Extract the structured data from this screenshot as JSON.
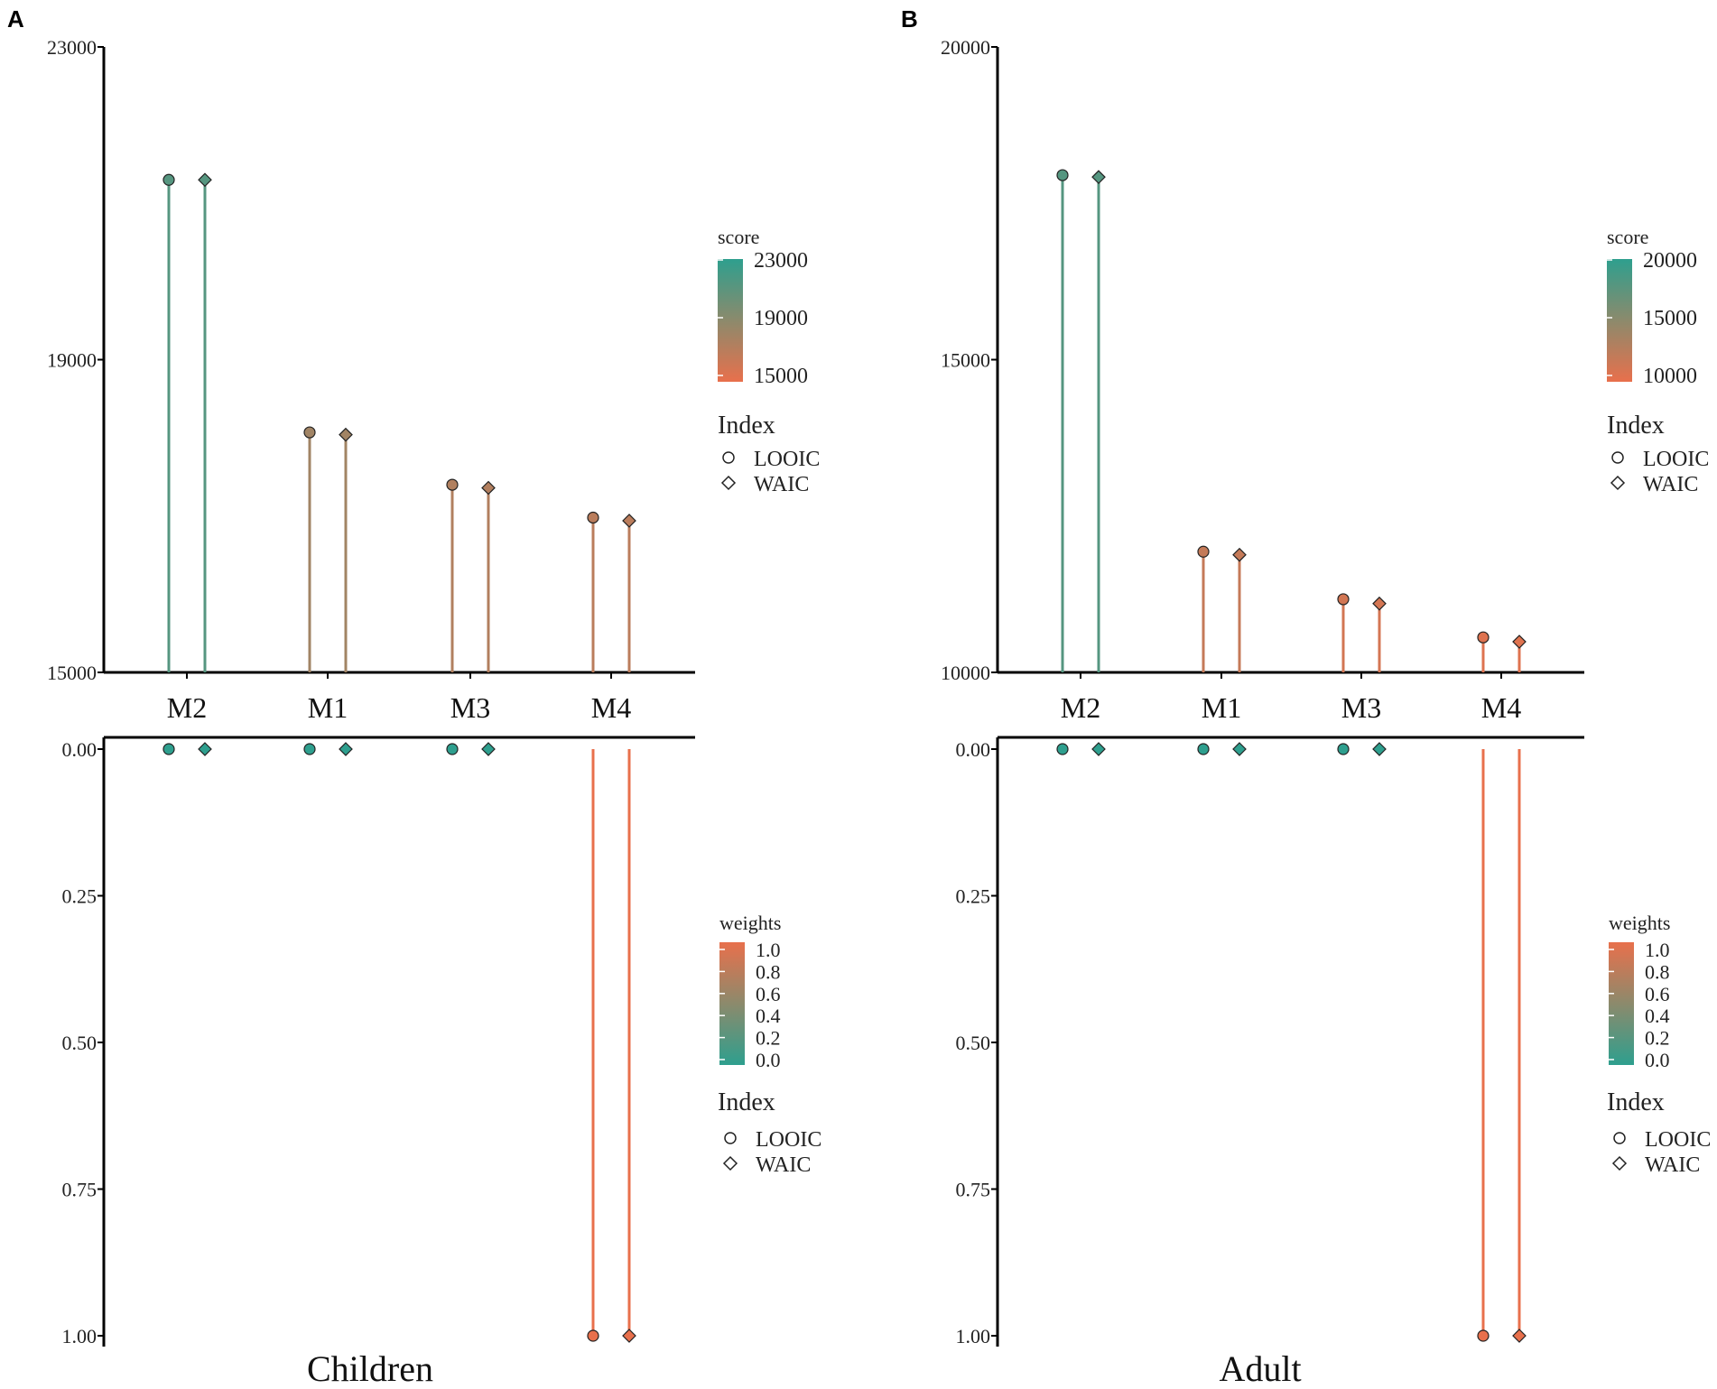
{
  "colors": {
    "low_score": "#e8704c",
    "high_score": "#2e9f8e",
    "mid": "#8c8a6c",
    "axis": "#000000"
  },
  "chart_data": [
    {
      "panel": "A",
      "group": "Children",
      "type": "lollipop",
      "categories": [
        "M2",
        "M1",
        "M3",
        "M4"
      ],
      "score": {
        "ylim": [
          15000,
          23000
        ],
        "yticks": [
          15000,
          19000,
          23000
        ],
        "series": [
          {
            "name": "LOOIC",
            "shape": "circle",
            "values": [
              21300,
              18070,
              17400,
              16980
            ]
          },
          {
            "name": "WAIC",
            "shape": "diamond",
            "values": [
              21300,
              18040,
              17360,
              16940
            ]
          }
        ]
      },
      "weights": {
        "ylim": [
          0,
          1
        ],
        "yticks": [
          "0.00",
          "0.25",
          "0.50",
          "0.75",
          "1.00"
        ],
        "reversed": true,
        "series": [
          {
            "name": "LOOIC",
            "shape": "circle",
            "values": [
              0,
              0,
              0,
              1
            ]
          },
          {
            "name": "WAIC",
            "shape": "diamond",
            "values": [
              0,
              0,
              0,
              1
            ]
          }
        ]
      },
      "legend_score": {
        "title": "score",
        "labels": [
          "23000",
          "19000",
          "15000"
        ],
        "range": [
          15000,
          23000
        ]
      },
      "legend_index_top": {
        "title": "Index",
        "items": [
          "LOOIC",
          "WAIC"
        ]
      },
      "legend_weights": {
        "title": "weights",
        "labels": [
          "1.0",
          "0.8",
          "0.6",
          "0.4",
          "0.2",
          "0.0"
        ]
      },
      "legend_index_bottom": {
        "title": "Index",
        "items": [
          "LOOIC",
          "WAIC"
        ]
      }
    },
    {
      "panel": "B",
      "group": "Adult",
      "type": "lollipop",
      "categories": [
        "M2",
        "M1",
        "M3",
        "M4"
      ],
      "score": {
        "ylim": [
          10000,
          20000
        ],
        "yticks": [
          10000,
          15000,
          20000
        ],
        "series": [
          {
            "name": "LOOIC",
            "shape": "circle",
            "values": [
              17950,
              11930,
              11170,
              10560
            ]
          },
          {
            "name": "WAIC",
            "shape": "diamond",
            "values": [
              17920,
              11880,
              11100,
              10490
            ]
          }
        ]
      },
      "weights": {
        "ylim": [
          0,
          1
        ],
        "yticks": [
          "0.00",
          "0.25",
          "0.50",
          "0.75",
          "1.00"
        ],
        "reversed": true,
        "series": [
          {
            "name": "LOOIC",
            "shape": "circle",
            "values": [
              0,
              0,
              0,
              1
            ]
          },
          {
            "name": "WAIC",
            "shape": "diamond",
            "values": [
              0,
              0,
              0,
              1
            ]
          }
        ]
      },
      "legend_score": {
        "title": "score",
        "labels": [
          "20000",
          "15000",
          "10000"
        ],
        "range": [
          10000,
          20000
        ]
      },
      "legend_index_top": {
        "title": "Index",
        "items": [
          "LOOIC",
          "WAIC"
        ]
      },
      "legend_weights": {
        "title": "weights",
        "labels": [
          "1.0",
          "0.8",
          "0.6",
          "0.4",
          "0.2",
          "0.0"
        ]
      },
      "legend_index_bottom": {
        "title": "Index",
        "items": [
          "LOOIC",
          "WAIC"
        ]
      }
    }
  ]
}
